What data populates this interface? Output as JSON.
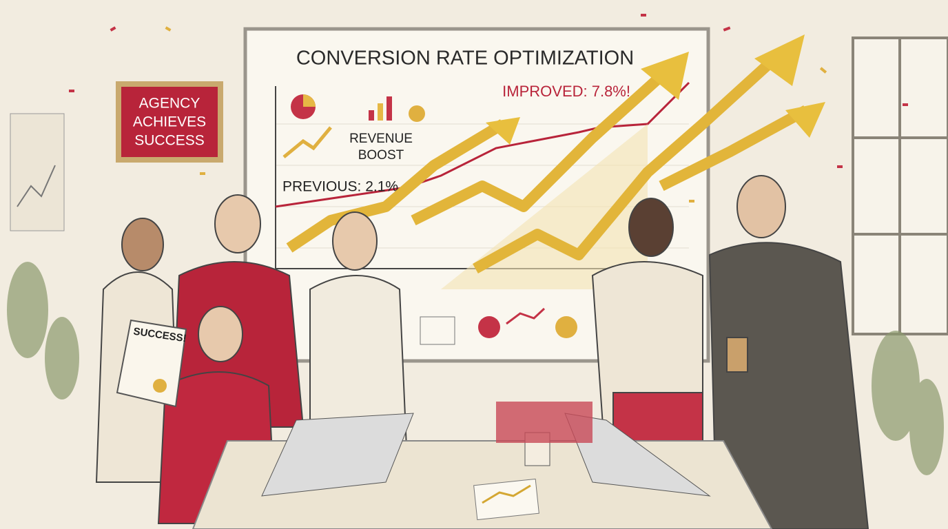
{
  "whiteboard": {
    "title": "CONVERSION RATE OPTIMIZATION",
    "improved": "IMPROVED: 7.8%!",
    "previous": "PREVIOUS: 2.1%",
    "revenue": [
      "REVENUE",
      "BOOST"
    ]
  },
  "sign": {
    "lines": [
      "AGENCY",
      "ACHIEVES",
      "SUCCESS"
    ]
  },
  "document": {
    "label": "SUCCESS!"
  }
}
